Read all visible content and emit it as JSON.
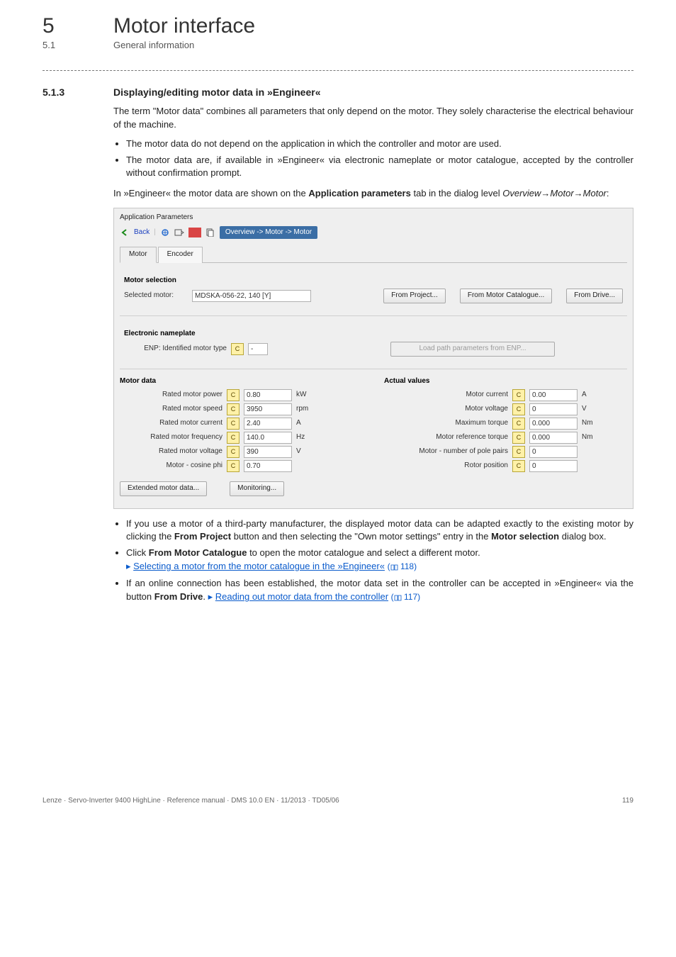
{
  "chapter": {
    "num": "5",
    "title": "Motor interface"
  },
  "subchapter": {
    "num": "5.1",
    "title": "General information"
  },
  "section": {
    "num": "5.1.3",
    "title": "Displaying/editing motor data in »Engineer«"
  },
  "intro": "The term \"Motor data\" combines all parameters that only depend on the motor. They solely characterise the electrical behaviour of the machine.",
  "bullets1": [
    "The motor data do not depend on the application in which the controller and motor are used.",
    "The motor data are, if available in »Engineer« via electronic nameplate or motor catalogue, accepted by the controller without confirmation prompt."
  ],
  "lead2a": "In »Engineer« the motor data are shown on the ",
  "lead2b": "Application parameters",
  "lead2c": " tab in the dialog level ",
  "lead2d": "Overview→Motor→Motor",
  "shot": {
    "panelTitle": "Application Parameters",
    "back": "Back",
    "crumb": "Overview -> Motor -> Motor",
    "tabs": {
      "motor": "Motor",
      "encoder": "Encoder"
    },
    "selGroup": "Motor selection",
    "selLabel": "Selected motor:",
    "selVal": "MDSKA-056-22, 140 [Y]",
    "btnProj": "From Project...",
    "btnCat": "From  Motor Catalogue...",
    "btnDrive": "From Drive...",
    "enpGroup": "Electronic nameplate",
    "enpLabel": "ENP: Identified motor type",
    "enpVal": "-",
    "btnLoad": "Load path parameters from ENP...",
    "mdGroup": "Motor data",
    "avGroup": "Actual values",
    "left": [
      {
        "lbl": "Rated motor power",
        "val": "0.80",
        "unit": "kW"
      },
      {
        "lbl": "Rated motor speed",
        "val": "3950",
        "unit": "rpm"
      },
      {
        "lbl": "Rated motor current",
        "val": "2.40",
        "unit": "A"
      },
      {
        "lbl": "Rated motor frequency",
        "val": "140.0",
        "unit": "Hz"
      },
      {
        "lbl": "Rated motor voltage",
        "val": "390",
        "unit": "V"
      },
      {
        "lbl": "Motor - cosine phi",
        "val": "0.70",
        "unit": ""
      }
    ],
    "right": [
      {
        "lbl": "Motor current",
        "val": "0.00",
        "unit": "A"
      },
      {
        "lbl": "Motor voltage",
        "val": "0",
        "unit": "V"
      },
      {
        "lbl": "Maximum torque",
        "val": "0.000",
        "unit": "Nm"
      },
      {
        "lbl": "Motor reference torque",
        "val": "0.000",
        "unit": "Nm"
      },
      {
        "lbl": "Motor - number of pole pairs",
        "val": "0",
        "unit": ""
      },
      {
        "lbl": "Rotor position",
        "val": "0",
        "unit": ""
      }
    ],
    "btnExt": "Extended motor data...",
    "btnMon": "Monitoring..."
  },
  "post": {
    "it1a": "If you use a motor of a third-party manufacturer, the displayed motor data can be adapted exactly to the existing motor by clicking the ",
    "it1b": "From Project",
    "it1c": " button and then selecting the \"Own motor settings\" entry in the ",
    "it1d": "Motor selection",
    "it1e": " dialog box.",
    "it2a": "Click ",
    "it2b": "From Motor Catalogue",
    "it2c": " to open the motor catalogue and select a different motor.",
    "link2": "Selecting a motor from the motor catalogue in the »Engineer«",
    "ref2": "118",
    "it3a": "If an online connection has been established, the motor data set in the controller can be accepted in »Engineer« via the button ",
    "it3b": "From Drive",
    "it3c": ". ",
    "link3": "Reading out motor data from the controller",
    "ref3": "117"
  },
  "footer": {
    "left": "Lenze · Servo-Inverter 9400 HighLine · Reference manual · DMS 10.0 EN · 11/2013 · TD05/06",
    "page": "119"
  }
}
